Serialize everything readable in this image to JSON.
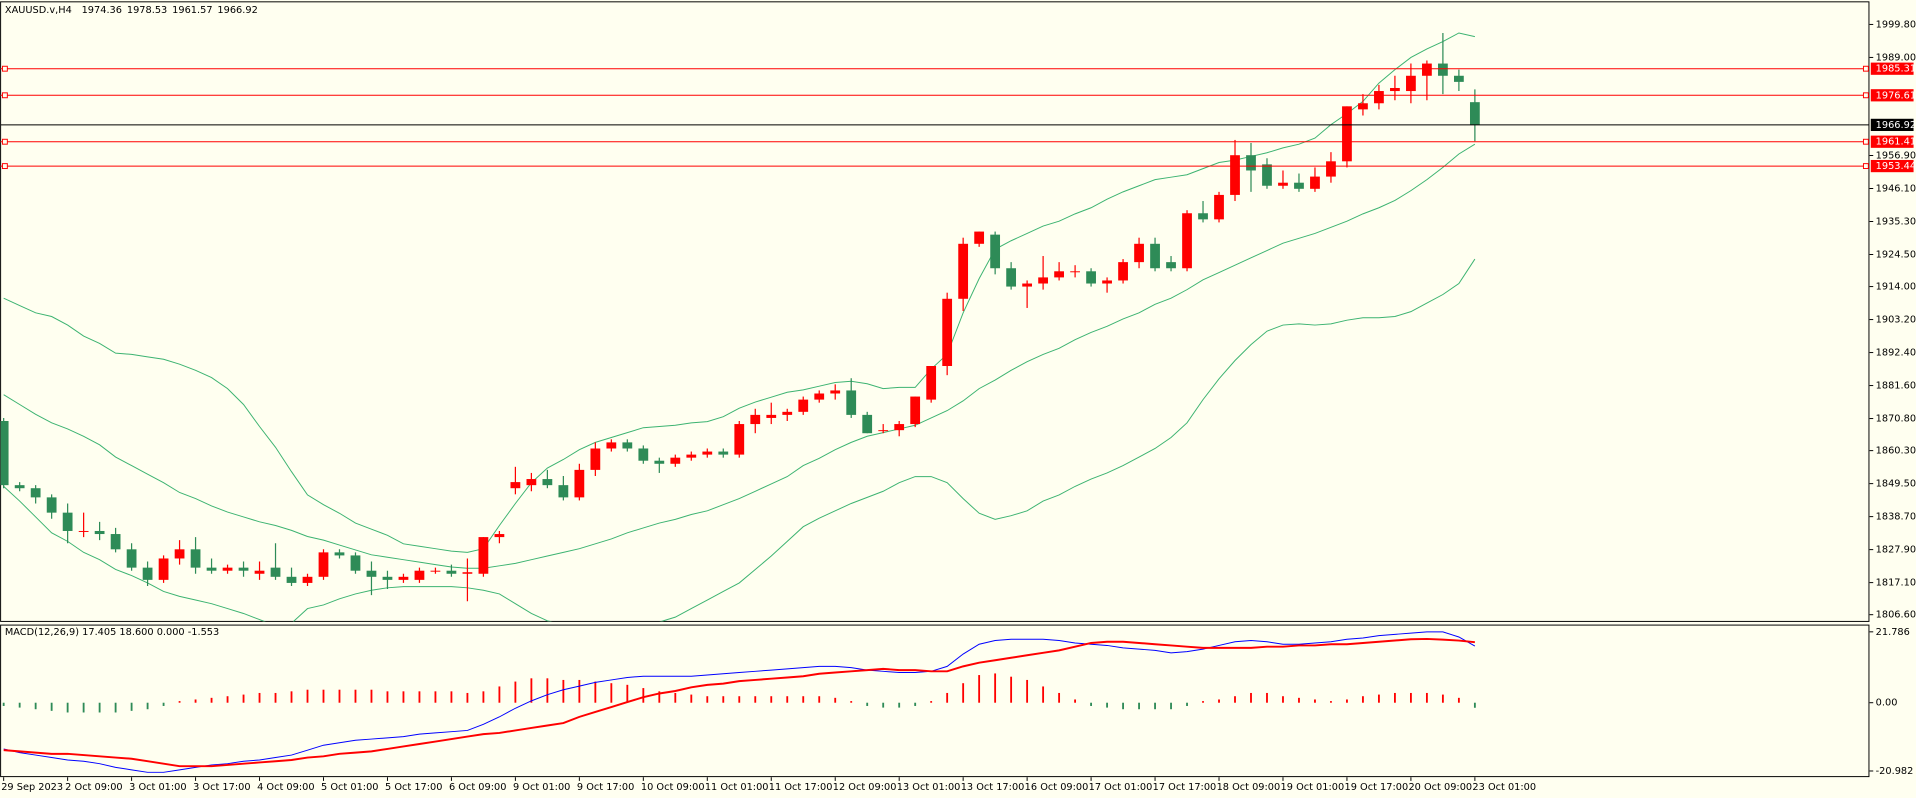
{
  "chart_data": {
    "type": "candlestick",
    "title": "XAUUSD.v,H4",
    "categories": [
      "29 Sep 2023",
      null,
      null,
      null,
      "2 Oct 09:00",
      null,
      null,
      null,
      "3 Oct 01:00",
      null,
      null,
      null,
      "3 Oct 17:00",
      null,
      null,
      null,
      "4 Oct 09:00",
      null,
      null,
      null,
      "5 Oct 01:00",
      null,
      null,
      null,
      "5 Oct 17:00",
      null,
      null,
      null,
      "6 Oct 09:00",
      null,
      null,
      null,
      "9 Oct 01:00",
      null,
      null,
      null,
      "9 Oct 17:00",
      null,
      null,
      null,
      "10 Oct 09:00",
      null,
      null,
      null,
      "11 Oct 01:00",
      null,
      null,
      null,
      "11 Oct 17:00",
      null,
      null,
      null,
      "12 Oct 09:00",
      null,
      null,
      null,
      "13 Oct 01:00",
      null,
      null,
      null,
      "13 Oct 17:00",
      null,
      null,
      null,
      "16 Oct 09:00",
      null,
      null,
      null,
      "17 Oct 01:00",
      null,
      null,
      null,
      "17 Oct 17:00",
      null,
      null,
      null,
      "18 Oct 09:00",
      null,
      null,
      null,
      "19 Oct 01:00",
      null,
      null,
      null,
      "19 Oct 17:00",
      null,
      null,
      null,
      "20 Oct 09:00",
      null,
      null,
      null,
      "23 Oct 01:00"
    ],
    "open": [
      1870,
      1849,
      1848,
      1845,
      1840,
      1834,
      1834,
      1833,
      1828,
      1822,
      1818,
      1825,
      1828,
      1822,
      1821,
      1822,
      1820,
      1822,
      1819,
      1817,
      1819,
      1827,
      1826,
      1821,
      1819,
      1818,
      1818,
      1821,
      1821,
      1820,
      1820,
      1832,
      1848,
      1849,
      1851,
      1849,
      1845,
      1854,
      1861,
      1863,
      1861,
      1857,
      1856,
      1858,
      1859,
      1860,
      1859,
      1869,
      1871,
      1872,
      1873,
      1877,
      1879,
      1880,
      1872,
      1867,
      1867,
      1869,
      1877,
      1888,
      1910,
      1928,
      1931,
      1920,
      1914,
      1915,
      1917,
      1919,
      1919,
      1915,
      1916,
      1922,
      1928,
      1922,
      1920,
      1938,
      1936,
      1944,
      1957,
      1954,
      1947,
      1948,
      1946,
      1950,
      1955,
      1972,
      1974,
      1978,
      1978,
      1983,
      1987,
      1983,
      1974.36
    ],
    "high": [
      1871,
      1850,
      1849,
      1846,
      1843,
      1840,
      1837,
      1835,
      1830,
      1824,
      1826,
      1831,
      1832,
      1825,
      1823,
      1824,
      1824,
      1830,
      1822,
      1820,
      1828,
      1828,
      1827,
      1824,
      1821,
      1820,
      1822,
      1822,
      1823,
      1825,
      1832,
      1834,
      1855,
      1853,
      1854,
      1852,
      1856,
      1863,
      1864,
      1864,
      1862,
      1858,
      1859,
      1860,
      1861,
      1861,
      1870,
      1874,
      1876,
      1874,
      1878,
      1880,
      1882,
      1884,
      1873,
      1869,
      1870,
      1878,
      1888,
      1912,
      1930,
      1932,
      1932,
      1922,
      1916,
      1924,
      1922,
      1921,
      1920,
      1917,
      1923,
      1930,
      1930,
      1924,
      1939,
      1942,
      1945,
      1962,
      1961,
      1956,
      1952,
      1951,
      1953,
      1958,
      1973,
      1977,
      1980,
      1983,
      1987,
      1988,
      1997,
      1985,
      1978.53
    ],
    "low": [
      1848,
      1847,
      1843,
      1838,
      1830,
      1832,
      1831,
      1827,
      1821,
      1816,
      1817,
      1823,
      1820,
      1820,
      1820,
      1819,
      1818,
      1818,
      1816,
      1816,
      1818,
      1825,
      1820,
      1813,
      1815,
      1817,
      1817,
      1820,
      1819,
      1811,
      1819,
      1830,
      1846,
      1847,
      1848,
      1844,
      1844,
      1852,
      1860,
      1860,
      1856,
      1853,
      1855,
      1857,
      1858,
      1858,
      1858,
      1866,
      1869,
      1870,
      1872,
      1876,
      1877,
      1871,
      1866,
      1866,
      1865,
      1868,
      1876,
      1885,
      1906,
      1927,
      1918,
      1913,
      1907,
      1913,
      1916,
      1917,
      1914,
      1912,
      1915,
      1920,
      1919,
      1919,
      1919,
      1935,
      1935,
      1942,
      1945,
      1946,
      1946,
      1945,
      1945,
      1948,
      1953,
      1970,
      1972,
      1975,
      1974,
      1975,
      1977,
      1978,
      1961.57
    ],
    "close": [
      1849,
      1848,
      1845,
      1840,
      1834,
      1834,
      1833,
      1828,
      1822,
      1818,
      1825,
      1828,
      1822,
      1821,
      1822,
      1821,
      1821,
      1819,
      1817,
      1819,
      1827,
      1826,
      1821,
      1819,
      1818,
      1819,
      1821,
      1821,
      1820,
      1820.5,
      1832,
      1833,
      1850,
      1851,
      1849,
      1845,
      1854,
      1861,
      1863,
      1861,
      1857,
      1856,
      1858,
      1859,
      1860,
      1859,
      1869,
      1872,
      1872,
      1873,
      1877,
      1879,
      1880,
      1872,
      1866,
      1867,
      1869,
      1878,
      1888,
      1910,
      1928,
      1932,
      1920,
      1914,
      1915,
      1917,
      1919,
      1919,
      1915,
      1916,
      1922,
      1928,
      1920,
      1920,
      1938,
      1936,
      1944,
      1957,
      1952,
      1947,
      1948,
      1946,
      1950,
      1955,
      1973,
      1974,
      1978,
      1979,
      1983,
      1987,
      1983,
      1981,
      1966.92
    ],
    "up_color": "#ff0000",
    "down_color": "#2e8b57",
    "bands": {
      "color": "#3cb371",
      "upper": [
        1910.2,
        1907.8,
        1905.4,
        1904.2,
        1901.4,
        1897.8,
        1895.4,
        1892.2,
        1891.8,
        1891.0,
        1890.2,
        1888.6,
        1886.6,
        1884.2,
        1880.6,
        1875.4,
        1868.2,
        1861.4,
        1853.4,
        1845.8,
        1842.6,
        1839.8,
        1836.6,
        1834.6,
        1832.6,
        1829.8,
        1829.0,
        1828.2,
        1827.4,
        1827.0,
        1828.2,
        1835.8,
        1843.0,
        1849.8,
        1854.6,
        1857.4,
        1860.6,
        1863.0,
        1864.6,
        1866.2,
        1867.8,
        1868.2,
        1868.6,
        1869.4,
        1869.8,
        1871.4,
        1874.2,
        1876.2,
        1877.8,
        1879.4,
        1880.2,
        1881.4,
        1882.6,
        1883.0,
        1882.2,
        1880.6,
        1881.0,
        1881.0,
        1887.0,
        1891.8,
        1905.4,
        1916.6,
        1926.2,
        1929.0,
        1931.4,
        1933.8,
        1935.4,
        1937.8,
        1939.8,
        1942.6,
        1945.0,
        1947.0,
        1949.0,
        1949.8,
        1950.6,
        1952.6,
        1954.6,
        1955.4,
        1956.6,
        1957.8,
        1959.4,
        1960.6,
        1962.6,
        1967.0,
        1970.6,
        1974.6,
        1980.6,
        1985.0,
        1989.0,
        1991.8,
        1994.2,
        1997.0,
        1995.8
      ],
      "middle": [
        1878.6,
        1875.4,
        1872.2,
        1869.4,
        1867.4,
        1865.0,
        1862.2,
        1858.2,
        1855.4,
        1852.6,
        1849.8,
        1846.6,
        1844.6,
        1842.2,
        1840.2,
        1838.6,
        1837.0,
        1835.8,
        1834.2,
        1832.2,
        1831.0,
        1829.4,
        1827.8,
        1826.2,
        1825.4,
        1824.6,
        1823.8,
        1823.0,
        1822.2,
        1821.8,
        1821.8,
        1822.6,
        1823.4,
        1824.6,
        1825.8,
        1827.0,
        1828.2,
        1829.8,
        1831.4,
        1833.4,
        1835.0,
        1836.6,
        1837.8,
        1839.4,
        1840.6,
        1842.6,
        1844.6,
        1847.0,
        1849.4,
        1851.8,
        1855.4,
        1857.8,
        1860.6,
        1863.0,
        1865.0,
        1866.2,
        1867.4,
        1868.6,
        1871.0,
        1873.4,
        1876.6,
        1880.6,
        1883.4,
        1886.6,
        1889.4,
        1891.8,
        1893.8,
        1896.6,
        1899.0,
        1901.0,
        1903.4,
        1905.4,
        1908.2,
        1910.2,
        1913.0,
        1916.2,
        1918.6,
        1921.0,
        1923.4,
        1925.8,
        1928.2,
        1929.8,
        1931.4,
        1933.4,
        1935.4,
        1937.8,
        1939.8,
        1942.2,
        1945.4,
        1949.0,
        1953.0,
        1957.4,
        1960.6
      ],
      "lower": [
        1848.6,
        1843.8,
        1838.6,
        1833.4,
        1830.6,
        1827.0,
        1824.6,
        1821.4,
        1819.4,
        1817.0,
        1814.2,
        1812.6,
        1811.4,
        1810.2,
        1808.6,
        1807.0,
        1805.0,
        1803.0,
        1803.8,
        1808.6,
        1809.8,
        1811.8,
        1813.4,
        1814.6,
        1815.4,
        1815.8,
        1815.8,
        1815.8,
        1815.8,
        1815.4,
        1814.6,
        1813.4,
        1810.2,
        1807.0,
        1804.6,
        1803.4,
        1803.0,
        1802.6,
        1802.6,
        1803.0,
        1803.4,
        1804.2,
        1805.8,
        1808.6,
        1811.4,
        1814.2,
        1817.0,
        1821.4,
        1825.8,
        1830.6,
        1835.4,
        1838.2,
        1840.6,
        1843.0,
        1845.0,
        1847.0,
        1849.8,
        1851.8,
        1851.8,
        1849.8,
        1844.6,
        1839.8,
        1837.8,
        1839.0,
        1840.6,
        1843.8,
        1845.8,
        1848.6,
        1851.0,
        1853.0,
        1855.4,
        1858.2,
        1861.0,
        1864.6,
        1869.4,
        1877.0,
        1883.8,
        1889.8,
        1895.0,
        1899.4,
        1901.4,
        1901.8,
        1901.4,
        1901.8,
        1903.0,
        1903.8,
        1903.8,
        1904.2,
        1905.8,
        1908.6,
        1911.4,
        1915.0,
        1923.0
      ]
    },
    "levels": [
      1985.31,
      1976.61,
      1961.41,
      1953.44
    ],
    "level_color": "#ff0000",
    "price_line_color": "#000000",
    "ylim": [
      1804.6,
      2007.0
    ],
    "yticks": [
      {
        "value": 1999.8,
        "label": "1999.80"
      },
      {
        "value": 1989,
        "label": "1989.00"
      },
      {
        "value": 1956.9,
        "label": "1956.90"
      },
      {
        "value": 1946.1,
        "label": "1946.10"
      },
      {
        "value": 1935.3,
        "label": "1935.30"
      },
      {
        "value": 1924.5,
        "label": "1924.50"
      },
      {
        "value": 1914,
        "label": "1914.00"
      },
      {
        "value": 1903.2,
        "label": "1903.20"
      },
      {
        "value": 1892.4,
        "label": "1892.40"
      },
      {
        "value": 1881.6,
        "label": "1881.60"
      },
      {
        "value": 1870.8,
        "label": "1870.80"
      },
      {
        "value": 1860.3,
        "label": "1860.30"
      },
      {
        "value": 1849.5,
        "label": "1849.50"
      },
      {
        "value": 1838.7,
        "label": "1838.70"
      },
      {
        "value": 1827.9,
        "label": "1827.90"
      },
      {
        "value": 1817.1,
        "label": "1817.10"
      },
      {
        "value": 1806.6,
        "label": "1806.60"
      }
    ],
    "macd": {
      "label": "MACD(12,26,9) 17.405 18.600 0.000 -1.553",
      "macd_color": "#0000ff",
      "signal_color": "#ff0000",
      "macd": [
        -14.2,
        -15.33,
        -16.09,
        -16.85,
        -17.6,
        -17.98,
        -18.74,
        -19.88,
        -20.63,
        -21.39,
        -21.39,
        -20.63,
        -19.88,
        -19.12,
        -18.74,
        -17.98,
        -17.6,
        -16.85,
        -16.09,
        -14.58,
        -13.06,
        -12.31,
        -11.55,
        -11.17,
        -10.79,
        -10.41,
        -9.65,
        -9.28,
        -8.9,
        -8.52,
        -6.63,
        -4.35,
        -1.7,
        0.57,
        2.46,
        3.98,
        5.11,
        6.25,
        7.0,
        7.76,
        8.14,
        8.14,
        8.14,
        8.14,
        8.52,
        8.9,
        9.28,
        9.65,
        10.03,
        10.41,
        10.79,
        11.17,
        11.17,
        10.79,
        10.03,
        9.65,
        9.28,
        9.28,
        9.65,
        11.17,
        14.96,
        17.98,
        19.12,
        19.5,
        19.5,
        19.5,
        19.12,
        18.36,
        17.98,
        17.6,
        16.85,
        16.47,
        16.09,
        15.33,
        15.71,
        16.47,
        17.6,
        18.74,
        19.12,
        18.74,
        17.98,
        17.98,
        18.36,
        18.74,
        19.5,
        19.88,
        20.63,
        21.01,
        21.39,
        21.77,
        21.77,
        20.2,
        17.405
      ],
      "signal": [
        -14.58,
        -14.95,
        -15.33,
        -15.71,
        -15.71,
        -16.09,
        -16.47,
        -16.85,
        -17.22,
        -17.98,
        -18.74,
        -19.5,
        -19.5,
        -19.5,
        -19.12,
        -18.74,
        -18.36,
        -17.98,
        -17.6,
        -16.85,
        -16.47,
        -15.71,
        -15.33,
        -14.95,
        -14.2,
        -13.44,
        -12.68,
        -11.93,
        -11.17,
        -10.41,
        -9.65,
        -9.28,
        -8.52,
        -7.76,
        -7.0,
        -6.25,
        -4.35,
        -2.84,
        -1.33,
        0.19,
        1.7,
        2.84,
        3.6,
        4.73,
        5.49,
        5.87,
        6.63,
        7.0,
        7.38,
        7.76,
        8.14,
        8.9,
        9.28,
        9.65,
        10.03,
        10.41,
        10.03,
        10.03,
        9.65,
        9.65,
        11.17,
        12.31,
        13.06,
        13.82,
        14.58,
        15.33,
        16.09,
        17.22,
        18.36,
        18.74,
        18.74,
        18.36,
        17.98,
        17.6,
        17.22,
        16.85,
        16.85,
        16.85,
        16.85,
        17.22,
        17.22,
        17.6,
        17.6,
        17.98,
        17.98,
        18.36,
        18.74,
        19.12,
        19.5,
        19.6,
        19.4,
        19.1,
        18.6
      ],
      "histogram": [
        -1.0,
        -1.5,
        -2.0,
        -2.5,
        -3.0,
        -3.0,
        -3.0,
        -3.0,
        -2.5,
        -2.0,
        -1.0,
        0.5,
        1.0,
        1.5,
        2.0,
        2.5,
        3.0,
        3.0,
        3.5,
        4.0,
        4.0,
        4.0,
        4.0,
        4.0,
        3.5,
        3.5,
        3.5,
        3.5,
        3.5,
        3.0,
        3.5,
        5.0,
        6.5,
        7.5,
        7.5,
        7.0,
        7.0,
        6.5,
        6.0,
        5.5,
        4.5,
        3.5,
        3.0,
        2.5,
        2.0,
        2.0,
        2.0,
        2.0,
        2.0,
        2.0,
        2.0,
        2.0,
        1.5,
        0.5,
        -1.0,
        -1.5,
        -1.5,
        -1.0,
        0.5,
        3.0,
        6.0,
        8.5,
        9.0,
        8.0,
        7.0,
        5.0,
        3.0,
        1.0,
        -1.0,
        -1.5,
        -2.0,
        -2.0,
        -2.0,
        -2.0,
        -1.0,
        0.5,
        1.0,
        2.0,
        3.0,
        3.0,
        2.0,
        1.5,
        1.0,
        0.5,
        1.0,
        2.0,
        2.5,
        3.0,
        3.0,
        3.0,
        2.5,
        1.5,
        -1.553
      ],
      "ylim": [
        -22.9,
        24.05
      ],
      "yticks": [
        21.786,
        {
          "value": 0,
          "label": "0.00"
        },
        -20.982
      ]
    }
  }
}
